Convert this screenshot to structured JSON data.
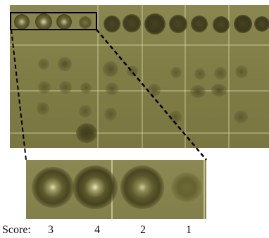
{
  "score_label": "Score:",
  "scores": [
    "3",
    "4",
    "2",
    "1"
  ],
  "colors": {
    "plate_base": "#827e48",
    "grid_line": "#e8e5bc",
    "spot_dark": "#3e3c1e",
    "highlight_box": "#000000",
    "text": "#111111"
  }
}
